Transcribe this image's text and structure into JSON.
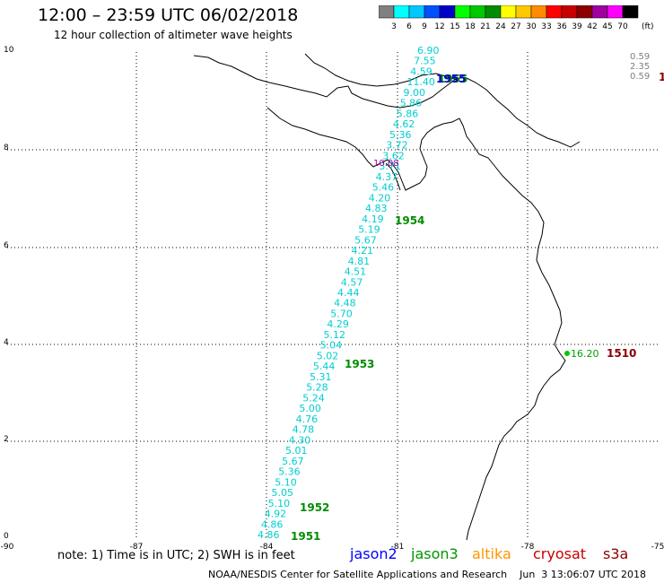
{
  "title": "12:00 – 23:59 UTC 06/02/2018",
  "subtitle": "12 hour collection of altimeter wave heights",
  "colorbar": {
    "labels": [
      "3",
      "6",
      "9",
      "12",
      "15",
      "18",
      "21",
      "24",
      "27",
      "30",
      "33",
      "36",
      "39",
      "42",
      "45",
      "70"
    ],
    "colors": [
      "#808080",
      "#00ffff",
      "#00c8ff",
      "#0050ff",
      "#0000c8",
      "#00ff00",
      "#00c800",
      "#008c00",
      "#ffff00",
      "#ffc800",
      "#ff8c00",
      "#ff0000",
      "#c80000",
      "#8c0000",
      "#a000a0",
      "#ff00ff",
      "#000000"
    ],
    "unit": "(ft)"
  },
  "axes": {
    "x_ticks": [
      "-90",
      "-87",
      "-84",
      "-81",
      "-78",
      "-75"
    ],
    "y_ticks": [
      "0",
      "2",
      "4",
      "6",
      "8",
      "10"
    ]
  },
  "track_values": [
    "6.90",
    "7.55",
    "4.59",
    "11.40",
    "9.00",
    "5.86",
    "5.86",
    "4.62",
    "5.36",
    "3.72",
    "3.62",
    "3.71",
    "4.37",
    "5.46",
    "4.20",
    "4.83",
    "4.19",
    "5.19",
    "5.67",
    "4.21",
    "4.81",
    "4.51",
    "4.57",
    "4.44",
    "4.48",
    "5.70",
    "4.29",
    "5.12",
    "5.04",
    "5.02",
    "5.44",
    "5.31",
    "5.28",
    "5.24",
    "5.00",
    "4.76",
    "4.78",
    "4.30",
    "5.01",
    "5.67",
    "5.36",
    "5.10",
    "5.05",
    "5.10",
    "4.92",
    "4.86",
    "4.86"
  ],
  "time_labels": [
    {
      "text": "1955",
      "color": "#008c00"
    },
    {
      "text": "1954",
      "color": "#008c00"
    },
    {
      "text": "1953",
      "color": "#008c00"
    },
    {
      "text": "1952",
      "color": "#008c00"
    },
    {
      "text": "1951",
      "color": "#008c00"
    }
  ],
  "blue_label": "1955",
  "small_labels": [
    "10.08"
  ],
  "east_point": {
    "value": "16.20",
    "time": "1510"
  },
  "ne_values": [
    "0.59",
    "2.35",
    "0.59"
  ],
  "ne_time": "1",
  "note": "note:  1) Time is in UTC;  2) SWH is in feet",
  "satellites": [
    {
      "name": "jason2",
      "color": "#0000ff"
    },
    {
      "name": "jason3",
      "color": "#009600"
    },
    {
      "name": "altika",
      "color": "#ff9600"
    },
    {
      "name": "cryosat",
      "color": "#c80000"
    },
    {
      "name": "s3a",
      "color": "#8c0000"
    }
  ],
  "credit": "NOAA/NESDIS Center for Satellite Applications and Research    Jun  3 13:06:07 UTC 2018"
}
